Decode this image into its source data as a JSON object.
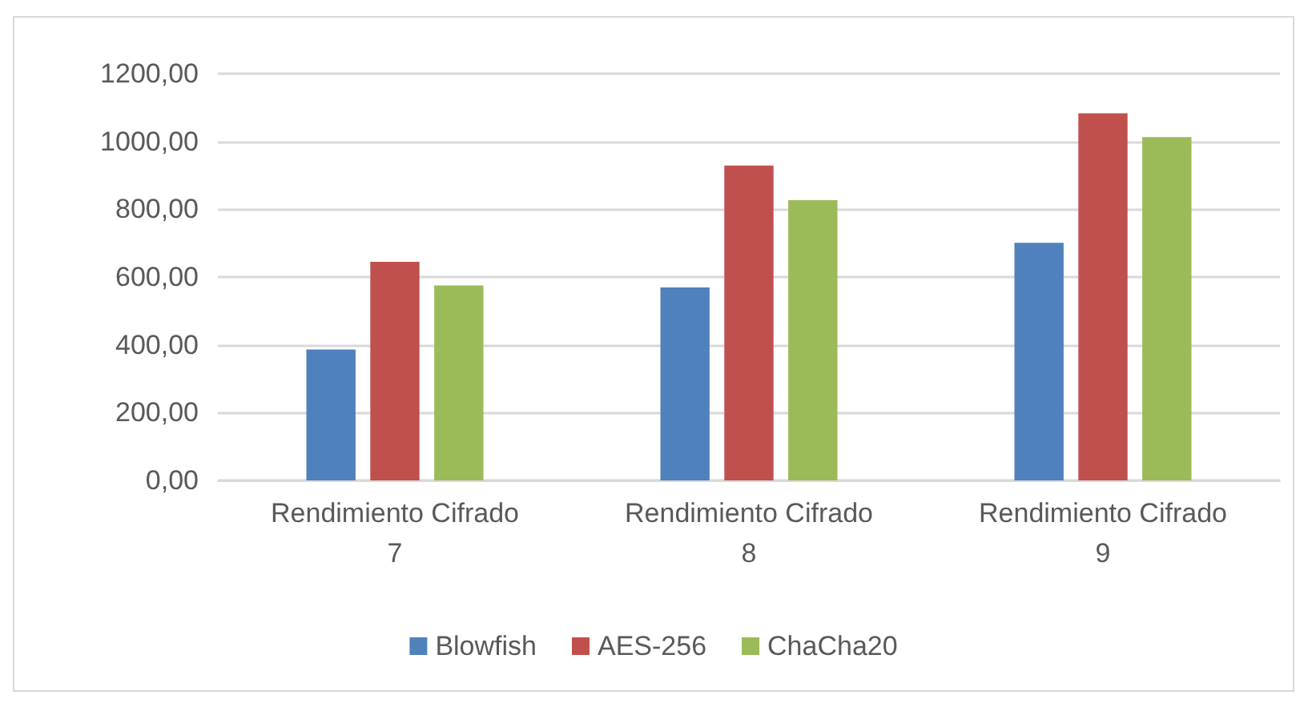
{
  "chart_data": {
    "type": "bar",
    "categories": [
      "Rendimiento Cifrado 7",
      "Rendimiento Cifrado 8",
      "Rendimiento Cifrado 9"
    ],
    "series": [
      {
        "name": "Blowfish",
        "color": "#4f81bd",
        "values": [
          386,
          569,
          701
        ]
      },
      {
        "name": "AES-256",
        "color": "#c0504d",
        "values": [
          645,
          929,
          1083
        ]
      },
      {
        "name": "ChaCha20",
        "color": "#9bbb59",
        "values": [
          575,
          827,
          1013
        ]
      }
    ],
    "ylim": [
      0,
      1200
    ],
    "yticks": [
      {
        "value": 0,
        "label": "0,00"
      },
      {
        "value": 200,
        "label": "200,00"
      },
      {
        "value": 400,
        "label": "400,00"
      },
      {
        "value": 600,
        "label": "600,00"
      },
      {
        "value": 800,
        "label": "800,00"
      },
      {
        "value": 1000,
        "label": "1000,00"
      },
      {
        "value": 1200,
        "label": "1200,00"
      }
    ],
    "grid": "y",
    "legend": "bottom"
  }
}
